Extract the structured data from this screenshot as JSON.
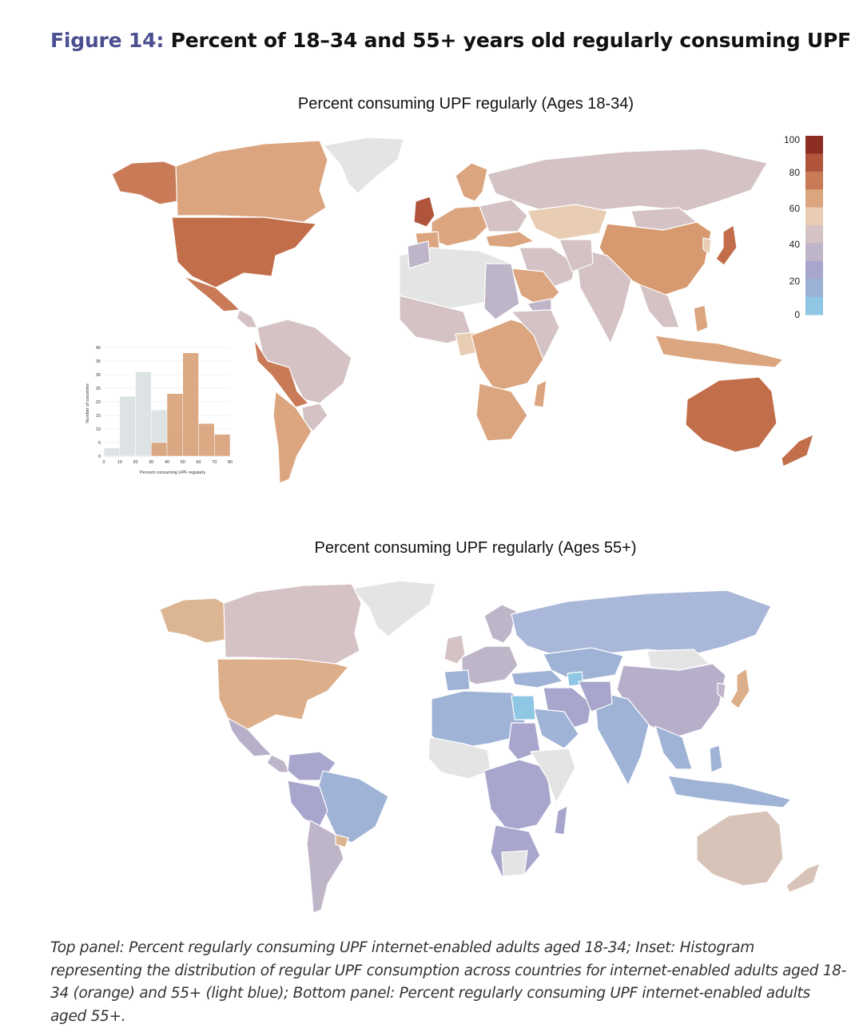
{
  "figure": {
    "label": "Figure 14",
    "colon": ":",
    "title": "Percent of 18–34 and 55+ years old regularly consuming UPF"
  },
  "panels": {
    "top_title": "Percent consuming UPF regularly (Ages 18-34)",
    "bottom_title": "Percent consuming UPF regularly (Ages 55+)"
  },
  "legend": {
    "ticks": [
      "100",
      "80",
      "60",
      "40",
      "20",
      "0"
    ],
    "colors": [
      "#8e2d22",
      "#b0553c",
      "#c97a56",
      "#dba57f",
      "#e8cdb3",
      "#d4c2c4",
      "#bfb5c8",
      "#a8a6cc",
      "#9bb2d6",
      "#8fc6e3"
    ]
  },
  "map_colors": {
    "no_data": "#e4e4e4",
    "ocean": "#ffffff",
    "border": "#ffffff"
  },
  "chart_data": {
    "type": "bar",
    "xlabel": "Percent consuming UPF regularly",
    "ylabel": "Number of countries",
    "x_ticks": [
      "0",
      "10",
      "20",
      "30",
      "40",
      "50",
      "60",
      "70",
      "80"
    ],
    "y_ticks": [
      "0",
      "5",
      "10",
      "15",
      "20",
      "25",
      "30",
      "35",
      "40"
    ],
    "xlim": [
      0,
      80
    ],
    "ylim": [
      0,
      40
    ],
    "bins": [
      [
        0,
        10
      ],
      [
        10,
        20
      ],
      [
        20,
        30
      ],
      [
        30,
        40
      ],
      [
        40,
        50
      ],
      [
        50,
        60
      ],
      [
        60,
        70
      ],
      [
        70,
        80
      ]
    ],
    "series": [
      {
        "values": [
          3,
          22,
          31,
          17,
          9,
          3,
          0,
          0
        ],
        "color": "#dde3e4"
      },
      {
        "values": [
          0,
          0,
          0,
          5,
          23,
          38,
          12,
          8
        ],
        "color": "#d8a27a"
      }
    ]
  },
  "caption": "Top panel: Percent regularly consuming UPF internet-enabled adults aged 18-34; Inset: Histogram representing the distribution of regular UPF consumption across countries for internet-enabled adults aged 18-34 (orange) and 55+ (light blue); Bottom panel: Percent regularly consuming UPF internet-enabled adults aged 55+."
}
